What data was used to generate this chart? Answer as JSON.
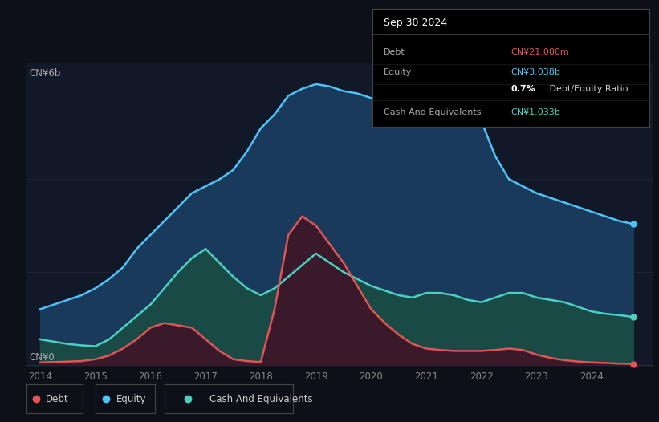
{
  "background_color": "#0d1117",
  "plot_bg_color": "#111827",
  "grid_color": "#2a3040",
  "debt_color": "#e05555",
  "equity_color": "#4fc3f7",
  "cash_color": "#4dd0c4",
  "equity_fill_color": "#1a3a5c",
  "cash_fill_color": "#1a4a45",
  "debt_fill_color": "#3a1a2a",
  "ylabel_top": "CN¥6b",
  "ylabel_bottom": "CN¥0",
  "years": [
    2014.0,
    2014.25,
    2014.5,
    2014.75,
    2015.0,
    2015.25,
    2015.5,
    2015.75,
    2016.0,
    2016.25,
    2016.5,
    2016.75,
    2017.0,
    2017.25,
    2017.5,
    2017.75,
    2018.0,
    2018.25,
    2018.5,
    2018.75,
    2019.0,
    2019.25,
    2019.5,
    2019.75,
    2020.0,
    2020.25,
    2020.5,
    2020.75,
    2021.0,
    2021.25,
    2021.5,
    2021.75,
    2022.0,
    2022.25,
    2022.5,
    2022.75,
    2023.0,
    2023.25,
    2023.5,
    2023.75,
    2024.0,
    2024.25,
    2024.5,
    2024.75
  ],
  "equity": [
    1.2,
    1.3,
    1.4,
    1.5,
    1.65,
    1.85,
    2.1,
    2.5,
    2.8,
    3.1,
    3.4,
    3.7,
    3.85,
    4.0,
    4.2,
    4.6,
    5.1,
    5.4,
    5.8,
    5.95,
    6.05,
    6.0,
    5.9,
    5.85,
    5.75,
    5.65,
    5.6,
    5.55,
    5.5,
    5.45,
    5.4,
    5.35,
    5.25,
    4.5,
    4.0,
    3.85,
    3.7,
    3.6,
    3.5,
    3.4,
    3.3,
    3.2,
    3.1,
    3.038
  ],
  "cash": [
    0.55,
    0.5,
    0.45,
    0.42,
    0.4,
    0.55,
    0.8,
    1.05,
    1.3,
    1.65,
    2.0,
    2.3,
    2.5,
    2.2,
    1.9,
    1.65,
    1.5,
    1.65,
    1.9,
    2.15,
    2.4,
    2.2,
    2.0,
    1.85,
    1.7,
    1.6,
    1.5,
    1.45,
    1.55,
    1.55,
    1.5,
    1.4,
    1.35,
    1.45,
    1.55,
    1.55,
    1.45,
    1.4,
    1.35,
    1.25,
    1.15,
    1.1,
    1.07,
    1.033
  ],
  "debt": [
    0.05,
    0.06,
    0.07,
    0.08,
    0.12,
    0.2,
    0.35,
    0.55,
    0.8,
    0.9,
    0.85,
    0.8,
    0.55,
    0.3,
    0.12,
    0.08,
    0.06,
    1.2,
    2.8,
    3.2,
    3.0,
    2.6,
    2.2,
    1.7,
    1.2,
    0.9,
    0.65,
    0.45,
    0.35,
    0.32,
    0.3,
    0.3,
    0.3,
    0.32,
    0.35,
    0.32,
    0.22,
    0.15,
    0.1,
    0.07,
    0.05,
    0.04,
    0.025,
    0.021
  ],
  "xlim": [
    2013.75,
    2025.1
  ],
  "ylim": [
    -0.05,
    6.5
  ],
  "xticks": [
    2014,
    2015,
    2016,
    2017,
    2018,
    2019,
    2020,
    2021,
    2022,
    2023,
    2024
  ],
  "info_box": {
    "title": "Sep 30 2024",
    "rows": [
      {
        "label": "Debt",
        "value": "CN¥21.000m",
        "label_color": "#aaaaaa",
        "value_color": "#e05555"
      },
      {
        "label": "Equity",
        "value": "CN¥3.038b",
        "label_color": "#aaaaaa",
        "value_color": "#4fc3f7"
      },
      {
        "label": "",
        "value": "0.7% Debt/Equity Ratio",
        "label_color": "#aaaaaa",
        "value_color": "#ffffff",
        "bold_prefix": "0.7%"
      },
      {
        "label": "Cash And Equivalents",
        "value": "CN¥1.033b",
        "label_color": "#aaaaaa",
        "value_color": "#4dd0c4"
      }
    ]
  },
  "legend_items": [
    {
      "label": "Debt",
      "color": "#e05555"
    },
    {
      "label": "Equity",
      "color": "#4fc3f7"
    },
    {
      "label": "Cash And Equivalents",
      "color": "#4dd0c4"
    }
  ]
}
